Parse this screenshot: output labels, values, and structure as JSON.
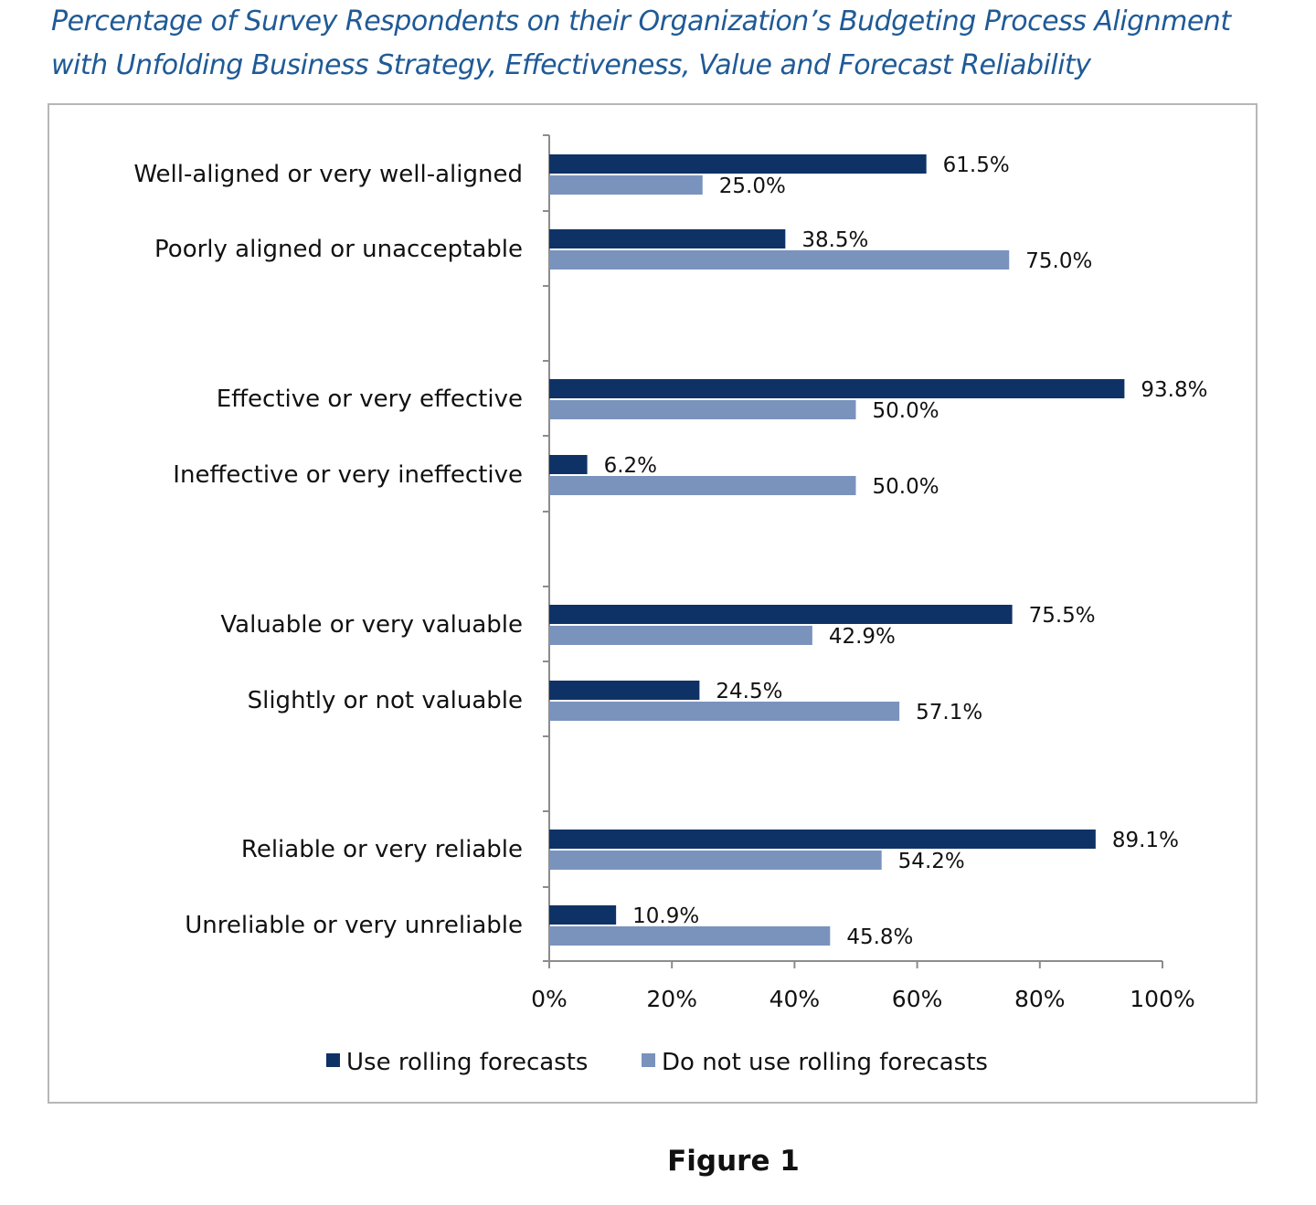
{
  "figure": {
    "title_line1": "Percentage of Survey Respondents on their Organization’s Budgeting Process Alignment",
    "title_line2": "with Unfolding Business Strategy, Effectiveness, Value and Forecast Reliability",
    "caption": "Figure 1"
  },
  "chart_data": {
    "type": "bar",
    "orientation": "horizontal",
    "title": "",
    "xlabel": "",
    "ylabel": "",
    "xlim": [
      0,
      100
    ],
    "x_ticks": [
      "0%",
      "20%",
      "40%",
      "60%",
      "80%",
      "100%"
    ],
    "grid": false,
    "legend_position": "bottom",
    "categories": [
      "Well-aligned or very well-aligned",
      "Poorly aligned or unacceptable",
      "Effective or very effective",
      "Ineffective or very ineffective",
      "Valuable or very valuable",
      "Slightly or not valuable",
      "Reliable or very reliable",
      "Unreliable or very unreliable"
    ],
    "series": [
      {
        "name": "Use rolling forecasts",
        "color": "#0f3266",
        "values": [
          61.5,
          38.5,
          93.8,
          6.2,
          75.5,
          24.5,
          89.1,
          10.9
        ],
        "labels": [
          "61.5%",
          "38.5%",
          "93.8%",
          "6.2%",
          "75.5%",
          "24.5%",
          "89.1%",
          "10.9%"
        ]
      },
      {
        "name": "Do not use rolling forecasts",
        "color": "#7a93bd",
        "values": [
          25.0,
          75.0,
          50.0,
          50.0,
          42.9,
          57.1,
          54.2,
          45.8
        ],
        "labels": [
          "25.0%",
          "75.0%",
          "50.0%",
          "50.0%",
          "42.9%",
          "57.1%",
          "54.2%",
          "45.8%"
        ]
      }
    ]
  }
}
